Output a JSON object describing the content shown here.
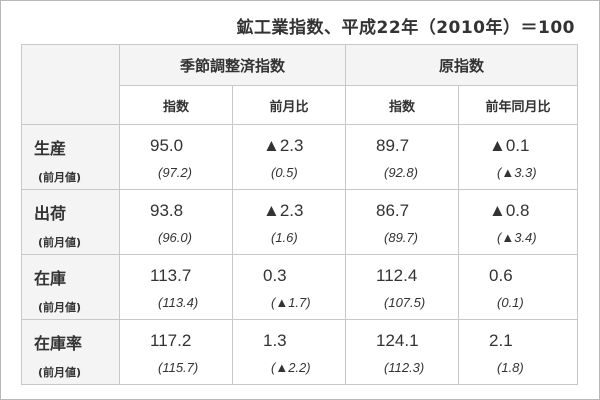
{
  "caption": "鉱工業指数、平成22年（2010年）＝100",
  "headers": {
    "seasonal": "季節調整済指数",
    "raw": "原指数",
    "seasonal_sub": [
      "指数",
      "前月比"
    ],
    "raw_sub": [
      "指数",
      "前年同月比"
    ]
  },
  "rows": [
    {
      "label": "生産",
      "sub_label": "(前月値)",
      "cells": [
        {
          "value": "95.0",
          "prev": "(97.2)"
        },
        {
          "value": "▲2.3",
          "prev": "(0.5)"
        },
        {
          "value": "89.7",
          "prev": "(92.8)"
        },
        {
          "value": "▲0.1",
          "prev": "(▲3.3)"
        }
      ]
    },
    {
      "label": "出荷",
      "sub_label": "(前月値)",
      "cells": [
        {
          "value": "93.8",
          "prev": "(96.0)"
        },
        {
          "value": "▲2.3",
          "prev": "(1.6)"
        },
        {
          "value": "86.7",
          "prev": "(89.7)"
        },
        {
          "value": "▲0.8",
          "prev": "(▲3.4)"
        }
      ]
    },
    {
      "label": "在庫",
      "sub_label": "(前月値)",
      "cells": [
        {
          "value": "113.7",
          "prev": "(113.4)"
        },
        {
          "value": "0.3",
          "prev": "(▲1.7)"
        },
        {
          "value": "112.4",
          "prev": "(107.5)"
        },
        {
          "value": "0.6",
          "prev": "(0.1)"
        }
      ]
    },
    {
      "label": "在庫率",
      "sub_label": "(前月値)",
      "cells": [
        {
          "value": "117.2",
          "prev": "(115.7)"
        },
        {
          "value": "1.3",
          "prev": "(▲2.2)"
        },
        {
          "value": "124.1",
          "prev": "(112.3)"
        },
        {
          "value": "2.1",
          "prev": "(1.8)"
        }
      ]
    }
  ]
}
